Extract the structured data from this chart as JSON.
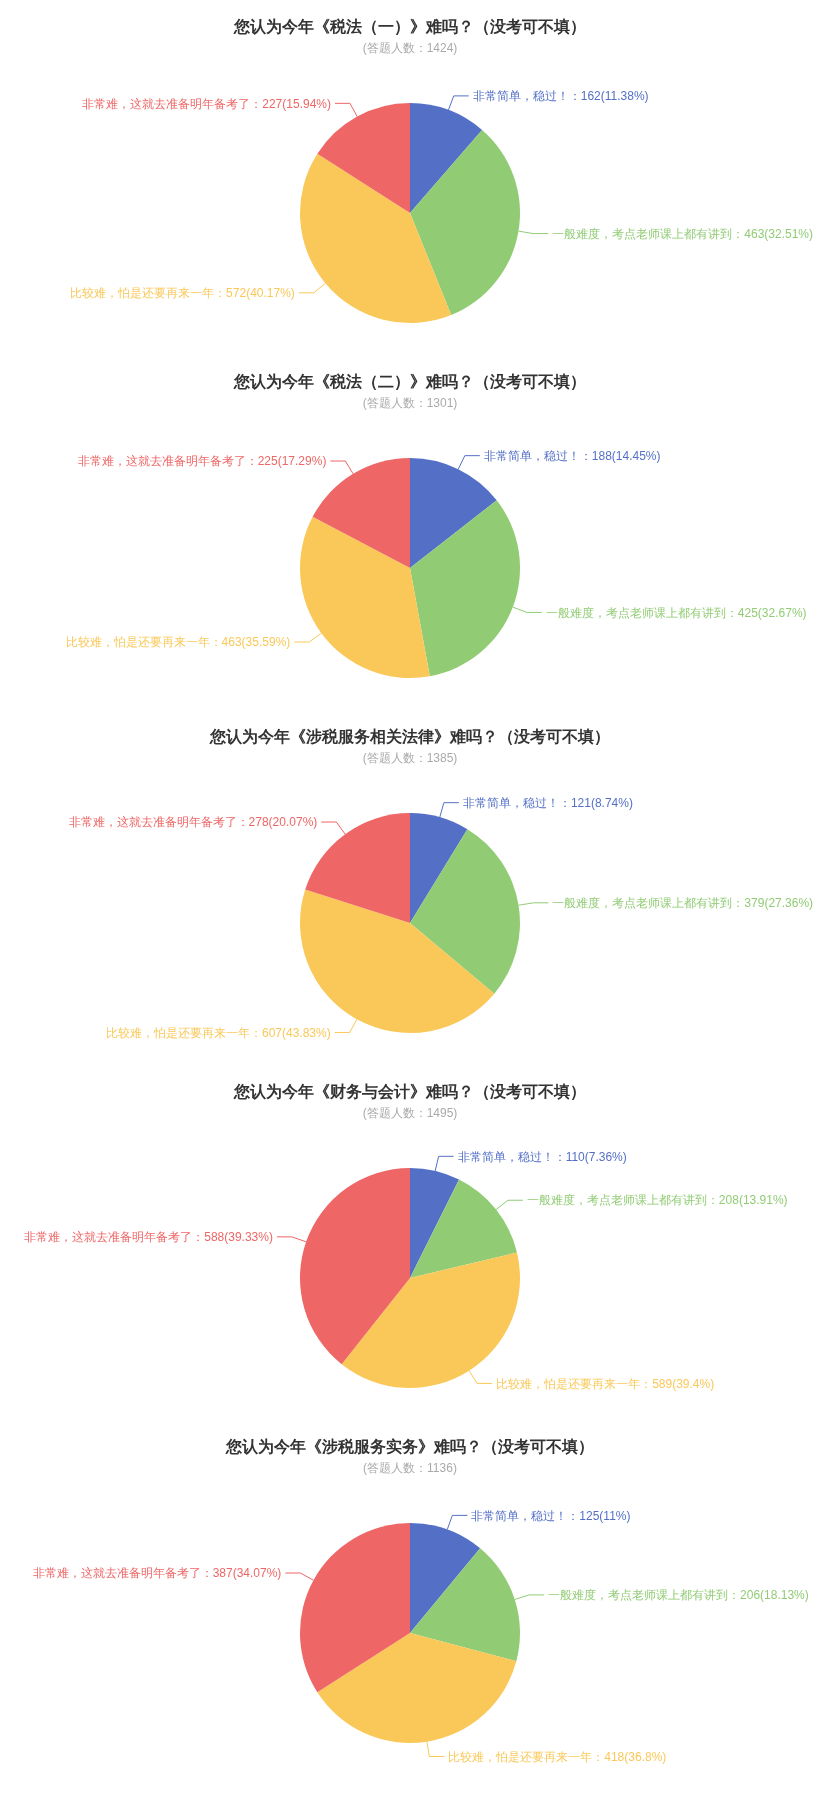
{
  "chart_data": [
    {
      "type": "pie",
      "title": "您认为今年《税法（一）》难吗？（没考可不填）",
      "subtitle": "(答题人数：1424)",
      "categories": [
        "非常简单，稳过！",
        "一般难度，考点老师课上都有讲到",
        "比较难，怕是还要再来一年",
        "非常难，这就去准备明年备考了"
      ],
      "values": [
        162,
        463,
        572,
        227
      ],
      "colors": [
        "#5470c6",
        "#91cc75",
        "#fac858",
        "#ee6666"
      ],
      "value_labels": [
        "：162(11.38%)",
        "：463(32.51%)",
        "：572(40.17%)",
        "：227(15.94%)"
      ]
    },
    {
      "type": "pie",
      "title": "您认为今年《税法（二）》难吗？（没考可不填）",
      "subtitle": "(答题人数：1301)",
      "categories": [
        "非常简单，稳过！",
        "一般难度，考点老师课上都有讲到",
        "比较难，怕是还要再来一年",
        "非常难，这就去准备明年备考了"
      ],
      "values": [
        188,
        425,
        463,
        225
      ],
      "colors": [
        "#5470c6",
        "#91cc75",
        "#fac858",
        "#ee6666"
      ],
      "value_labels": [
        "：188(14.45%)",
        "：425(32.67%)",
        "：463(35.59%)",
        "：225(17.29%)"
      ]
    },
    {
      "type": "pie",
      "title": "您认为今年《涉税服务相关法律》难吗？（没考可不填）",
      "subtitle": "(答题人数：1385)",
      "categories": [
        "非常简单，稳过！",
        "一般难度，考点老师课上都有讲到",
        "比较难，怕是还要再来一年",
        "非常难，这就去准备明年备考了"
      ],
      "values": [
        121,
        379,
        607,
        278
      ],
      "colors": [
        "#5470c6",
        "#91cc75",
        "#fac858",
        "#ee6666"
      ],
      "value_labels": [
        "：121(8.74%)",
        "：379(27.36%)",
        "：607(43.83%)",
        "：278(20.07%)"
      ]
    },
    {
      "type": "pie",
      "title": "您认为今年《财务与会计》难吗？（没考可不填）",
      "subtitle": "(答题人数：1495)",
      "categories": [
        "非常简单，稳过！",
        "一般难度，考点老师课上都有讲到",
        "比较难，怕是还要再来一年",
        "非常难，这就去准备明年备考了"
      ],
      "values": [
        110,
        208,
        589,
        588
      ],
      "colors": [
        "#5470c6",
        "#91cc75",
        "#fac858",
        "#ee6666"
      ],
      "value_labels": [
        "：110(7.36%)",
        "：208(13.91%)",
        "：589(39.4%)",
        "：588(39.33%)"
      ]
    },
    {
      "type": "pie",
      "title": "您认为今年《涉税服务实务》难吗？（没考可不填）",
      "subtitle": "(答题人数：1136)",
      "categories": [
        "非常简单，稳过！",
        "一般难度，考点老师课上都有讲到",
        "比较难，怕是还要再来一年",
        "非常难，这就去准备明年备考了"
      ],
      "values": [
        125,
        206,
        418,
        387
      ],
      "colors": [
        "#5470c6",
        "#91cc75",
        "#fac858",
        "#ee6666"
      ],
      "value_labels": [
        "：125(11%)",
        "：206(18.13%)",
        "：418(36.8%)",
        "：387(34.07%)"
      ]
    }
  ]
}
